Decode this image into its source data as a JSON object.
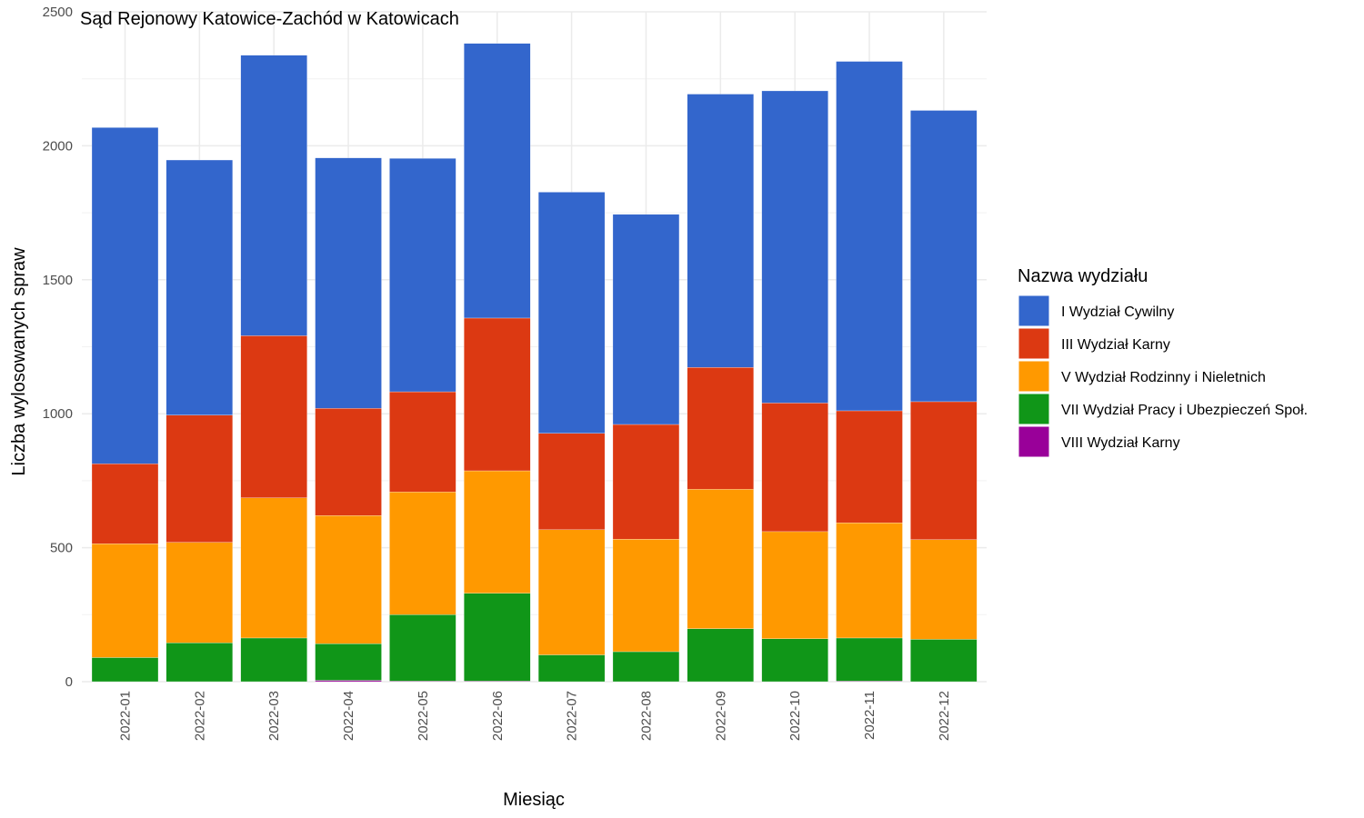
{
  "chart_data": {
    "type": "bar",
    "stacked": true,
    "title": "Sąd Rejonowy Katowice-Zachód w Katowicach",
    "xlabel": "Miesiąc",
    "ylabel": "Liczba wylosowanych spraw",
    "ylim": [
      0,
      2500
    ],
    "yticks": [
      "0",
      "500",
      "1000",
      "1500",
      "2000",
      "2500"
    ],
    "grid": true,
    "legend_title": "Nazwa wydziału",
    "legend_position": "right",
    "categories": [
      "2022-01",
      "2022-02",
      "2022-03",
      "2022-04",
      "2022-05",
      "2022-06",
      "2022-07",
      "2022-08",
      "2022-09",
      "2022-10",
      "2022-11",
      "2022-12"
    ],
    "series": [
      {
        "name": "VIII Wydział Karny",
        "color": "#990099",
        "values": [
          0,
          0,
          0,
          5,
          2,
          2,
          0,
          0,
          0,
          0,
          2,
          0
        ]
      },
      {
        "name": "VII Wydział Pracy i Ubezpieczeń Społ.",
        "color": "#109618",
        "values": [
          90,
          145,
          163,
          137,
          248,
          328,
          100,
          112,
          198,
          160,
          161,
          158
        ]
      },
      {
        "name": "V Wydział Rodzinny i Nieletnich",
        "color": "#ff9900",
        "values": [
          425,
          375,
          523,
          478,
          458,
          457,
          467,
          420,
          520,
          400,
          430,
          372
        ]
      },
      {
        "name": "III Wydział Karny",
        "color": "#dc3912",
        "values": [
          298,
          475,
          605,
          400,
          374,
          570,
          360,
          428,
          455,
          480,
          418,
          515
        ]
      },
      {
        "name": "I Wydział Cywilny",
        "color": "#3366cc",
        "values": [
          1255,
          952,
          1047,
          935,
          871,
          1025,
          900,
          784,
          1020,
          1165,
          1304,
          1087
        ]
      }
    ]
  }
}
